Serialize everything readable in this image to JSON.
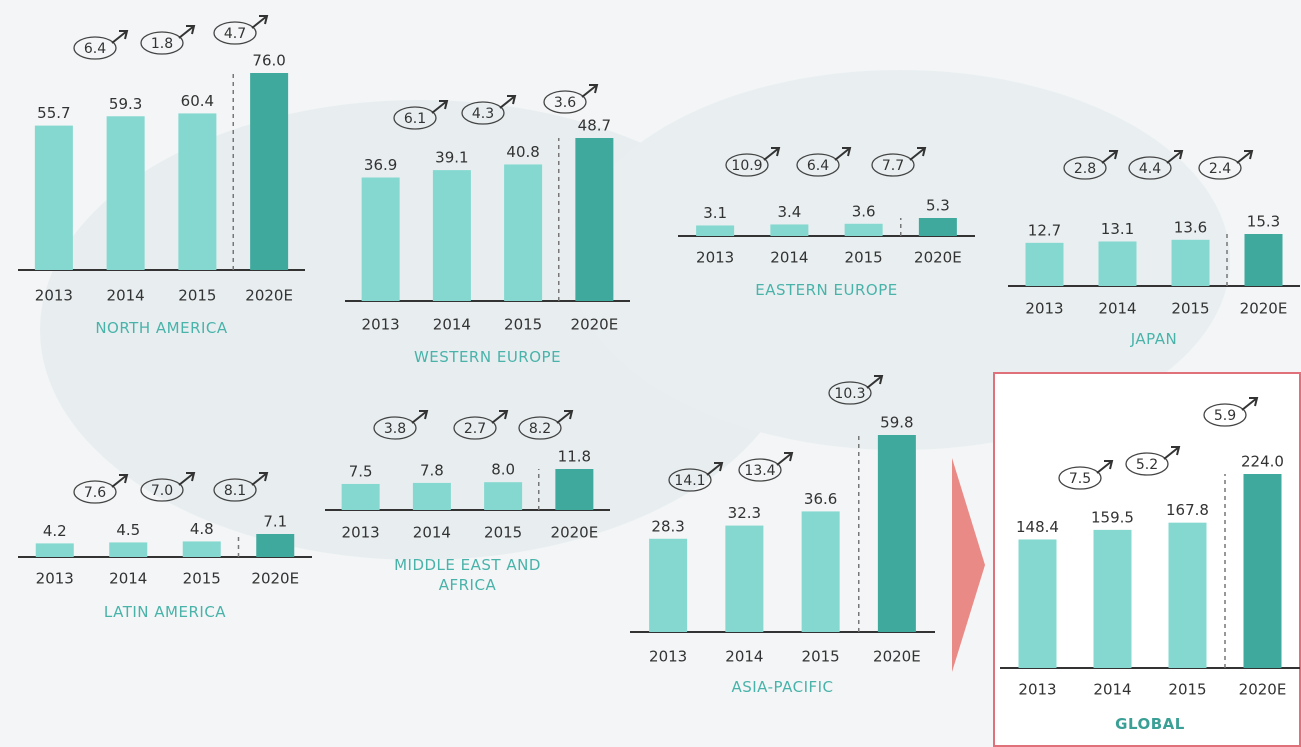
{
  "chart_data": [
    {
      "type": "bar",
      "title": "NORTH AMERICA",
      "categories": [
        "2013",
        "2014",
        "2015",
        "2020E"
      ],
      "values": [
        55.7,
        59.3,
        60.4,
        76
      ],
      "value_labels": [
        "55.7",
        "59.3",
        "60.4",
        "76.0"
      ],
      "annotations": [
        "6.4",
        "1.8",
        "4.7"
      ],
      "color": "#84d8cf",
      "highlight_color": "#3fa99e"
    },
    {
      "type": "bar",
      "title": "WESTERN EUROPE",
      "categories": [
        "2013",
        "2014",
        "2015",
        "2020E"
      ],
      "values": [
        36.9,
        39.1,
        40.8,
        48.7
      ],
      "value_labels": [
        "36.9",
        "39.1",
        "40.8",
        "48.7"
      ],
      "annotations": [
        "6.1",
        "4.3",
        "3.6"
      ],
      "color": "#84d8cf",
      "highlight_color": "#3fa99e"
    },
    {
      "type": "bar",
      "title": "EASTERN EUROPE",
      "categories": [
        "2013",
        "2014",
        "2015",
        "2020E"
      ],
      "values": [
        3.1,
        3.4,
        3.6,
        5.3
      ],
      "value_labels": [
        "3.1",
        "3.4",
        "3.6",
        "5.3"
      ],
      "annotations": [
        "10.9",
        "6.4",
        "7.7"
      ],
      "color": "#84d8cf",
      "highlight_color": "#3fa99e"
    },
    {
      "type": "bar",
      "title": "JAPAN",
      "categories": [
        "2013",
        "2014",
        "2015",
        "2020E"
      ],
      "values": [
        12.7,
        13.1,
        13.6,
        15.3
      ],
      "value_labels": [
        "12.7",
        "13.1",
        "13.6",
        "15.3"
      ],
      "annotations": [
        "2.8",
        "4.4",
        "2.4"
      ],
      "color": "#84d8cf",
      "highlight_color": "#3fa99e"
    },
    {
      "type": "bar",
      "title": "LATIN AMERICA",
      "categories": [
        "2013",
        "2014",
        "2015",
        "2020E"
      ],
      "values": [
        4.2,
        4.5,
        4.8,
        7.1
      ],
      "value_labels": [
        "4.2",
        "4.5",
        "4.8",
        "7.1"
      ],
      "annotations": [
        "7.6",
        "7.0",
        "8.1"
      ],
      "color": "#84d8cf",
      "highlight_color": "#3fa99e"
    },
    {
      "type": "bar",
      "title": "MIDDLE EAST AND AFRICA",
      "categories": [
        "2013",
        "2014",
        "2015",
        "2020E"
      ],
      "values": [
        7.5,
        7.8,
        8.0,
        11.8
      ],
      "value_labels": [
        "7.5",
        "7.8",
        "8.0",
        "11.8"
      ],
      "annotations": [
        "3.8",
        "2.7",
        "8.2"
      ],
      "color": "#84d8cf",
      "highlight_color": "#3fa99e"
    },
    {
      "type": "bar",
      "title": "ASIA-PACIFIC",
      "categories": [
        "2013",
        "2014",
        "2015",
        "2020E"
      ],
      "values": [
        28.3,
        32.3,
        36.6,
        59.8
      ],
      "value_labels": [
        "28.3",
        "32.3",
        "36.6",
        "59.8"
      ],
      "annotations": [
        "14.1",
        "13.4",
        "10.3"
      ],
      "color": "#84d8cf",
      "highlight_color": "#3fa99e"
    },
    {
      "type": "bar",
      "title": "GLOBAL",
      "categories": [
        "2013",
        "2014",
        "2015",
        "2020E"
      ],
      "values": [
        148.4,
        159.5,
        167.8,
        224.0
      ],
      "value_labels": [
        "148.4",
        "159.5",
        "167.8",
        "224.0"
      ],
      "annotations": [
        "7.5",
        "5.2",
        "5.9"
      ],
      "color": "#84d8cf",
      "highlight_color": "#3fa99e"
    }
  ]
}
